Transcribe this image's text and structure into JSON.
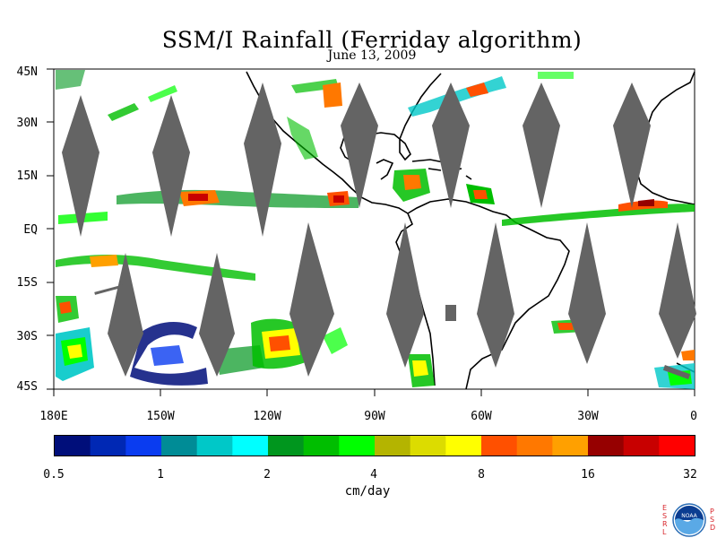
{
  "title": "SSM/I Rainfall (Ferriday algorithm)",
  "subtitle": "June 13, 2009",
  "y_axis_labels": [
    "45N",
    "30N",
    "15N",
    "EQ",
    "15S",
    "30S",
    "45S"
  ],
  "x_axis_labels": [
    "180E",
    "150W",
    "120W",
    "90W",
    "60W",
    "30W",
    "0"
  ],
  "colorbar": {
    "units": "cm/day",
    "tick_labels": [
      "0.5",
      "1",
      "2",
      "4",
      "8",
      "16",
      "32"
    ],
    "colors": [
      "#000e7a",
      "#0028b4",
      "#0a3cf0",
      "#008c96",
      "#00c8c8",
      "#00ffff",
      "#00961e",
      "#00be00",
      "#00ff00",
      "#b4b400",
      "#dcdc00",
      "#ffff00",
      "#ff5000",
      "#ff7800",
      "#ffa000",
      "#960000",
      "#c80000",
      "#ff0000"
    ]
  },
  "map_colors": {
    "missing_swath": "#646464",
    "coastline": "#000000"
  },
  "logo": {
    "left_text": [
      "E",
      "S",
      "R",
      "L"
    ],
    "right_text": [
      "P",
      "S",
      "D"
    ],
    "name": "NOAA"
  }
}
